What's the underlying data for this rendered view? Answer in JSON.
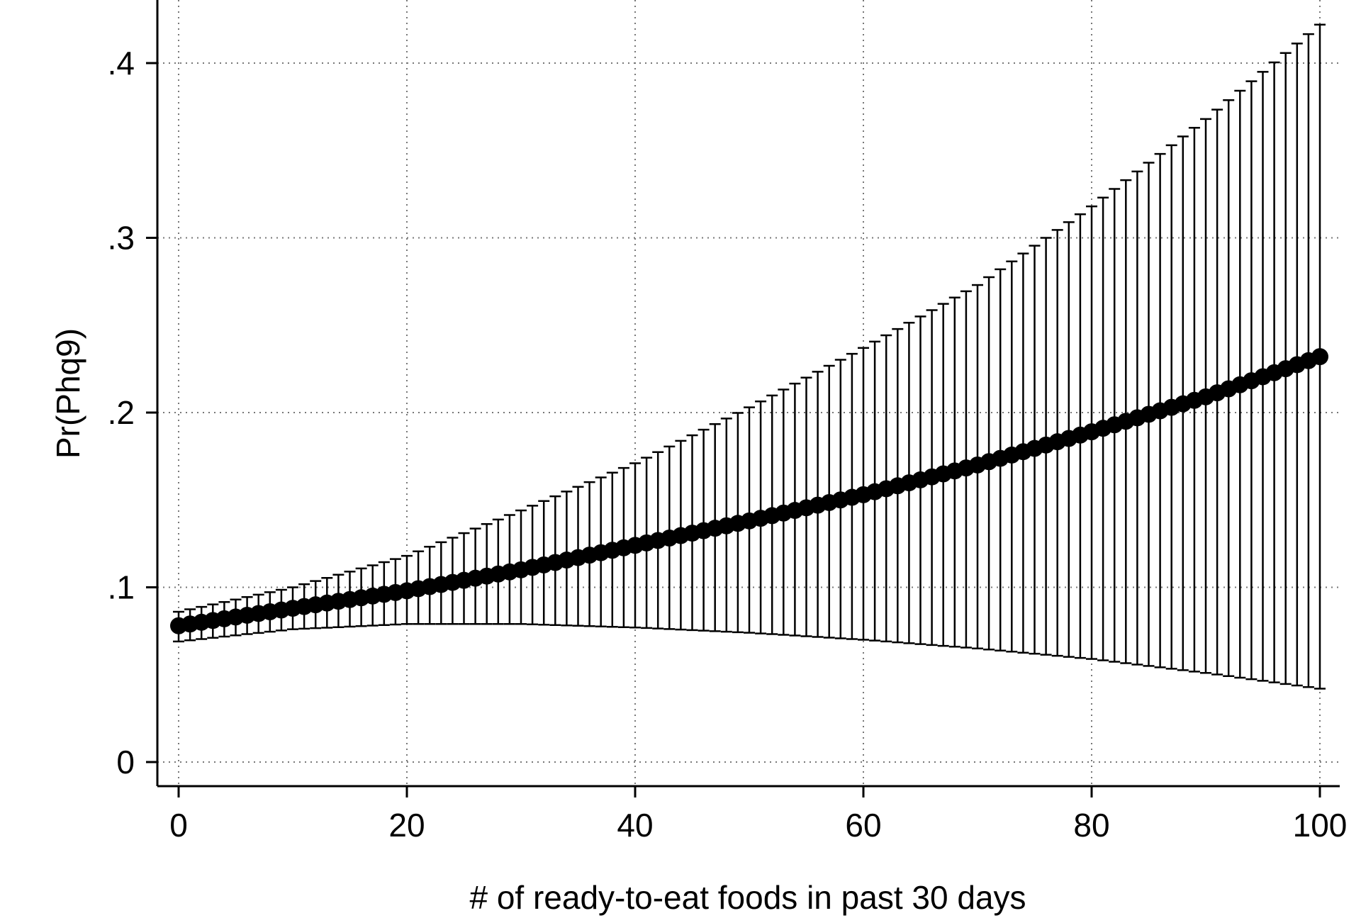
{
  "chart_data": {
    "type": "scatter",
    "xlabel": "# of ready-to-eat foods in past 30 days",
    "ylabel": "Pr(Phq9)",
    "xlim": [
      0,
      100
    ],
    "ylim": [
      0,
      0.4
    ],
    "x_ticks": [
      {
        "value": 0,
        "label": "0"
      },
      {
        "value": 20,
        "label": "20"
      },
      {
        "value": 40,
        "label": "40"
      },
      {
        "value": 60,
        "label": "60"
      },
      {
        "value": 80,
        "label": "80"
      },
      {
        "value": 100,
        "label": "100"
      }
    ],
    "y_ticks": [
      {
        "value": 0,
        "label": "0"
      },
      {
        "value": 0.1,
        "label": ".1"
      },
      {
        "value": 0.2,
        "label": ".2"
      },
      {
        "value": 0.3,
        "label": ".3"
      },
      {
        "value": 0.4,
        "label": ".4"
      }
    ],
    "grid": true,
    "grid_style": "dotted",
    "marker_color": "#000000",
    "x": [
      0,
      10,
      20,
      30,
      40,
      50,
      60,
      70,
      80,
      90,
      100
    ],
    "estimate": [
      0.078,
      0.088,
      0.098,
      0.11,
      0.124,
      0.138,
      0.153,
      0.17,
      0.189,
      0.209,
      0.232
    ],
    "ci_lower": [
      0.069,
      0.076,
      0.079,
      0.079,
      0.077,
      0.074,
      0.07,
      0.065,
      0.059,
      0.051,
      0.042
    ],
    "ci_upper": [
      0.086,
      0.1,
      0.118,
      0.144,
      0.171,
      0.203,
      0.237,
      0.273,
      0.318,
      0.368,
      0.422
    ],
    "x_step": 1
  }
}
